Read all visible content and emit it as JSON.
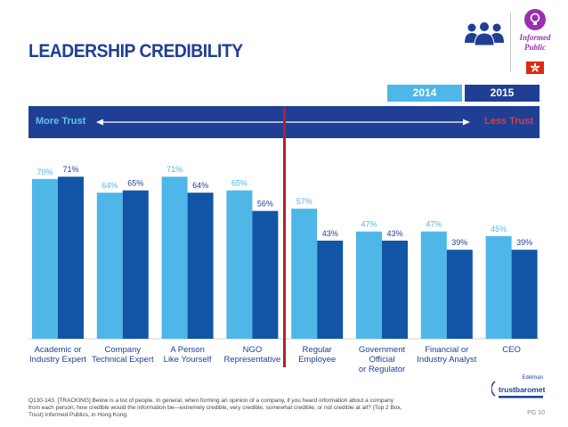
{
  "title": "LEADERSHIP CREDIBILITY",
  "badge": {
    "icon": "people-group-icon",
    "line1": "Informed",
    "line2": "Public"
  },
  "legend": {
    "y2014": "2014",
    "y2015": "2015"
  },
  "trust_scale": {
    "left": "More Trust",
    "right": "Less Trust"
  },
  "colors": {
    "series_2014": "#4fb6e8",
    "series_2015": "#1255a6",
    "brand": "#1f3f95",
    "marker": "#b2222b"
  },
  "chart_data": {
    "type": "bar",
    "title": "LEADERSHIP CREDIBILITY",
    "xlabel": "",
    "ylabel": "",
    "ylim": [
      0,
      100
    ],
    "grid": false,
    "categories": [
      [
        "Academic or",
        "Industry Expert"
      ],
      [
        "Company",
        "Technical Expert"
      ],
      [
        "A Person",
        "Like Yourself"
      ],
      [
        "NGO",
        "Representative"
      ],
      [
        "Regular",
        "Employee"
      ],
      [
        "Government",
        "Official",
        "or Regulator"
      ],
      [
        "Financial or",
        "Industry Analyst"
      ],
      [
        "CEO"
      ]
    ],
    "series": [
      {
        "name": "2014",
        "values": [
          70,
          64,
          71,
          65,
          57,
          47,
          47,
          45
        ]
      },
      {
        "name": "2015",
        "values": [
          71,
          65,
          64,
          56,
          43,
          43,
          39,
          39
        ]
      }
    ],
    "value_suffix": "%"
  },
  "footnote": "Q130-143. [TRACKING] Below is a list of people. In general, when forming an opinion of a company, if you heard information about a company from each person, how credible would the information be—extremely credible, very credible, somewhat credible, or not credible at all? (Top 2 Box, Trust) Informed Publics, in Hong Kong.",
  "brand_logo": {
    "top": "Edelman",
    "main": "trustbarometer"
  },
  "page_number": "PG 10"
}
